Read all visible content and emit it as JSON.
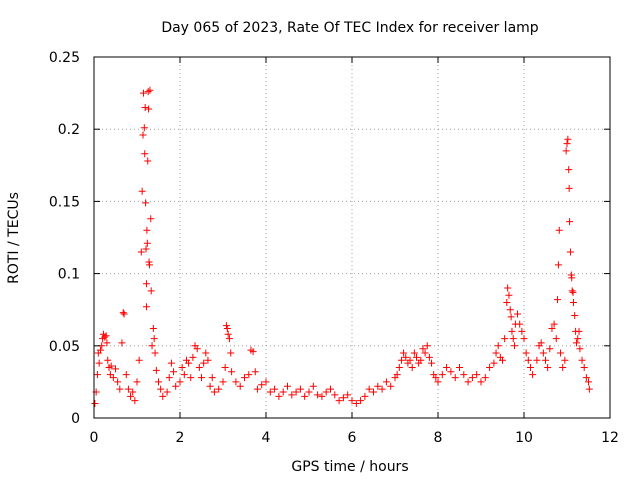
{
  "chart_data": {
    "type": "scatter",
    "title": "Day 065 of 2023, Rate Of TEC Index for receiver lamp",
    "xlabel": "GPS time / hours",
    "ylabel": "ROTI / TECUs",
    "xlim": [
      0,
      12
    ],
    "ylim": [
      0,
      0.25
    ],
    "xticks": [
      0,
      2,
      4,
      6,
      8,
      10,
      12
    ],
    "yticks": [
      0,
      0.05,
      0.1,
      0.15,
      0.2,
      0.25
    ],
    "xtick_labels": [
      "0",
      "2",
      "4",
      "6",
      "8",
      "10",
      "12"
    ],
    "ytick_labels": [
      "0",
      "0.05",
      "0.1",
      "0.15",
      "0.2",
      "0.25"
    ],
    "grid": true,
    "marker": "+",
    "color": "#ff0000",
    "series": [
      {
        "name": "ROTI",
        "points": [
          [
            0.02,
            0.01
          ],
          [
            0.05,
            0.018
          ],
          [
            0.08,
            0.03
          ],
          [
            0.1,
            0.045
          ],
          [
            0.12,
            0.038
          ],
          [
            0.15,
            0.047
          ],
          [
            0.18,
            0.05
          ],
          [
            0.2,
            0.055
          ],
          [
            0.22,
            0.058
          ],
          [
            0.25,
            0.056
          ],
          [
            0.28,
            0.057
          ],
          [
            0.3,
            0.052
          ],
          [
            0.32,
            0.04
          ],
          [
            0.35,
            0.035
          ],
          [
            0.38,
            0.03
          ],
          [
            0.4,
            0.036
          ],
          [
            0.45,
            0.028
          ],
          [
            0.5,
            0.034
          ],
          [
            0.55,
            0.025
          ],
          [
            0.6,
            0.02
          ],
          [
            0.65,
            0.052
          ],
          [
            0.68,
            0.073
          ],
          [
            0.7,
            0.072
          ],
          [
            0.75,
            0.03
          ],
          [
            0.8,
            0.02
          ],
          [
            0.85,
            0.015
          ],
          [
            0.9,
            0.018
          ],
          [
            0.95,
            0.012
          ],
          [
            1.0,
            0.025
          ],
          [
            1.05,
            0.04
          ],
          [
            1.1,
            0.115
          ],
          [
            1.12,
            0.157
          ],
          [
            1.14,
            0.196
          ],
          [
            1.15,
            0.225
          ],
          [
            1.17,
            0.201
          ],
          [
            1.18,
            0.183
          ],
          [
            1.19,
            0.215
          ],
          [
            1.2,
            0.149
          ],
          [
            1.21,
            0.117
          ],
          [
            1.22,
            0.093
          ],
          [
            1.22,
            0.077
          ],
          [
            1.23,
            0.13
          ],
          [
            1.24,
            0.121
          ],
          [
            1.25,
            0.178
          ],
          [
            1.26,
            0.226
          ],
          [
            1.27,
            0.214
          ],
          [
            1.28,
            0.108
          ],
          [
            1.29,
            0.106
          ],
          [
            1.3,
            0.227
          ],
          [
            1.32,
            0.138
          ],
          [
            1.33,
            0.088
          ],
          [
            1.35,
            0.05
          ],
          [
            1.38,
            0.062
          ],
          [
            1.4,
            0.055
          ],
          [
            1.42,
            0.045
          ],
          [
            1.45,
            0.033
          ],
          [
            1.5,
            0.025
          ],
          [
            1.55,
            0.02
          ],
          [
            1.6,
            0.015
          ],
          [
            1.7,
            0.018
          ],
          [
            1.75,
            0.028
          ],
          [
            1.8,
            0.038
          ],
          [
            1.85,
            0.032
          ],
          [
            1.9,
            0.022
          ],
          [
            2.0,
            0.025
          ],
          [
            2.05,
            0.035
          ],
          [
            2.1,
            0.03
          ],
          [
            2.15,
            0.04
          ],
          [
            2.2,
            0.038
          ],
          [
            2.25,
            0.028
          ],
          [
            2.3,
            0.042
          ],
          [
            2.35,
            0.05
          ],
          [
            2.4,
            0.048
          ],
          [
            2.45,
            0.035
          ],
          [
            2.5,
            0.028
          ],
          [
            2.55,
            0.038
          ],
          [
            2.6,
            0.045
          ],
          [
            2.65,
            0.04
          ],
          [
            2.7,
            0.022
          ],
          [
            2.75,
            0.028
          ],
          [
            2.8,
            0.018
          ],
          [
            2.9,
            0.02
          ],
          [
            3.0,
            0.025
          ],
          [
            3.05,
            0.035
          ],
          [
            3.08,
            0.064
          ],
          [
            3.1,
            0.062
          ],
          [
            3.12,
            0.058
          ],
          [
            3.15,
            0.055
          ],
          [
            3.18,
            0.045
          ],
          [
            3.2,
            0.032
          ],
          [
            3.3,
            0.025
          ],
          [
            3.4,
            0.022
          ],
          [
            3.5,
            0.028
          ],
          [
            3.6,
            0.03
          ],
          [
            3.65,
            0.047
          ],
          [
            3.7,
            0.046
          ],
          [
            3.75,
            0.032
          ],
          [
            3.8,
            0.02
          ],
          [
            3.9,
            0.023
          ],
          [
            4.0,
            0.025
          ],
          [
            4.1,
            0.018
          ],
          [
            4.2,
            0.02
          ],
          [
            4.3,
            0.015
          ],
          [
            4.4,
            0.018
          ],
          [
            4.5,
            0.022
          ],
          [
            4.6,
            0.016
          ],
          [
            4.7,
            0.018
          ],
          [
            4.8,
            0.02
          ],
          [
            4.9,
            0.015
          ],
          [
            5.0,
            0.018
          ],
          [
            5.1,
            0.022
          ],
          [
            5.2,
            0.016
          ],
          [
            5.3,
            0.015
          ],
          [
            5.4,
            0.018
          ],
          [
            5.5,
            0.02
          ],
          [
            5.6,
            0.016
          ],
          [
            5.7,
            0.012
          ],
          [
            5.8,
            0.014
          ],
          [
            5.9,
            0.016
          ],
          [
            6.0,
            0.012
          ],
          [
            6.1,
            0.01
          ],
          [
            6.2,
            0.012
          ],
          [
            6.3,
            0.015
          ],
          [
            6.4,
            0.02
          ],
          [
            6.5,
            0.018
          ],
          [
            6.6,
            0.022
          ],
          [
            6.7,
            0.02
          ],
          [
            6.8,
            0.025
          ],
          [
            6.9,
            0.022
          ],
          [
            7.0,
            0.028
          ],
          [
            7.05,
            0.03
          ],
          [
            7.1,
            0.035
          ],
          [
            7.15,
            0.04
          ],
          [
            7.2,
            0.045
          ],
          [
            7.25,
            0.042
          ],
          [
            7.3,
            0.038
          ],
          [
            7.35,
            0.04
          ],
          [
            7.4,
            0.035
          ],
          [
            7.45,
            0.045
          ],
          [
            7.5,
            0.042
          ],
          [
            7.55,
            0.038
          ],
          [
            7.6,
            0.04
          ],
          [
            7.65,
            0.048
          ],
          [
            7.7,
            0.045
          ],
          [
            7.75,
            0.05
          ],
          [
            7.8,
            0.042
          ],
          [
            7.85,
            0.038
          ],
          [
            7.9,
            0.03
          ],
          [
            7.95,
            0.028
          ],
          [
            8.0,
            0.025
          ],
          [
            8.1,
            0.03
          ],
          [
            8.2,
            0.035
          ],
          [
            8.3,
            0.032
          ],
          [
            8.4,
            0.028
          ],
          [
            8.5,
            0.035
          ],
          [
            8.6,
            0.03
          ],
          [
            8.7,
            0.025
          ],
          [
            8.8,
            0.028
          ],
          [
            8.9,
            0.03
          ],
          [
            9.0,
            0.025
          ],
          [
            9.1,
            0.028
          ],
          [
            9.2,
            0.035
          ],
          [
            9.3,
            0.038
          ],
          [
            9.35,
            0.045
          ],
          [
            9.4,
            0.05
          ],
          [
            9.45,
            0.042
          ],
          [
            9.5,
            0.04
          ],
          [
            9.55,
            0.055
          ],
          [
            9.6,
            0.08
          ],
          [
            9.62,
            0.09
          ],
          [
            9.65,
            0.085
          ],
          [
            9.68,
            0.075
          ],
          [
            9.7,
            0.07
          ],
          [
            9.72,
            0.06
          ],
          [
            9.75,
            0.055
          ],
          [
            9.78,
            0.05
          ],
          [
            9.8,
            0.065
          ],
          [
            9.85,
            0.072
          ],
          [
            9.9,
            0.065
          ],
          [
            9.95,
            0.06
          ],
          [
            10.0,
            0.055
          ],
          [
            10.05,
            0.045
          ],
          [
            10.1,
            0.04
          ],
          [
            10.15,
            0.035
          ],
          [
            10.2,
            0.03
          ],
          [
            10.3,
            0.04
          ],
          [
            10.35,
            0.05
          ],
          [
            10.4,
            0.052
          ],
          [
            10.45,
            0.045
          ],
          [
            10.5,
            0.04
          ],
          [
            10.55,
            0.035
          ],
          [
            10.6,
            0.048
          ],
          [
            10.65,
            0.062
          ],
          [
            10.7,
            0.065
          ],
          [
            10.75,
            0.055
          ],
          [
            10.78,
            0.082
          ],
          [
            10.8,
            0.106
          ],
          [
            10.82,
            0.13
          ],
          [
            10.85,
            0.045
          ],
          [
            10.9,
            0.035
          ],
          [
            10.95,
            0.04
          ],
          [
            10.98,
            0.185
          ],
          [
            11.0,
            0.19
          ],
          [
            11.02,
            0.193
          ],
          [
            11.04,
            0.172
          ],
          [
            11.05,
            0.159
          ],
          [
            11.06,
            0.136
          ],
          [
            11.08,
            0.115
          ],
          [
            11.1,
            0.099
          ],
          [
            11.11,
            0.097
          ],
          [
            11.12,
            0.088
          ],
          [
            11.14,
            0.087
          ],
          [
            11.15,
            0.08
          ],
          [
            11.18,
            0.071
          ],
          [
            11.2,
            0.06
          ],
          [
            11.22,
            0.052
          ],
          [
            11.25,
            0.055
          ],
          [
            11.28,
            0.06
          ],
          [
            11.3,
            0.048
          ],
          [
            11.35,
            0.04
          ],
          [
            11.4,
            0.035
          ],
          [
            11.45,
            0.028
          ],
          [
            11.5,
            0.025
          ],
          [
            11.52,
            0.02
          ]
        ]
      }
    ]
  }
}
